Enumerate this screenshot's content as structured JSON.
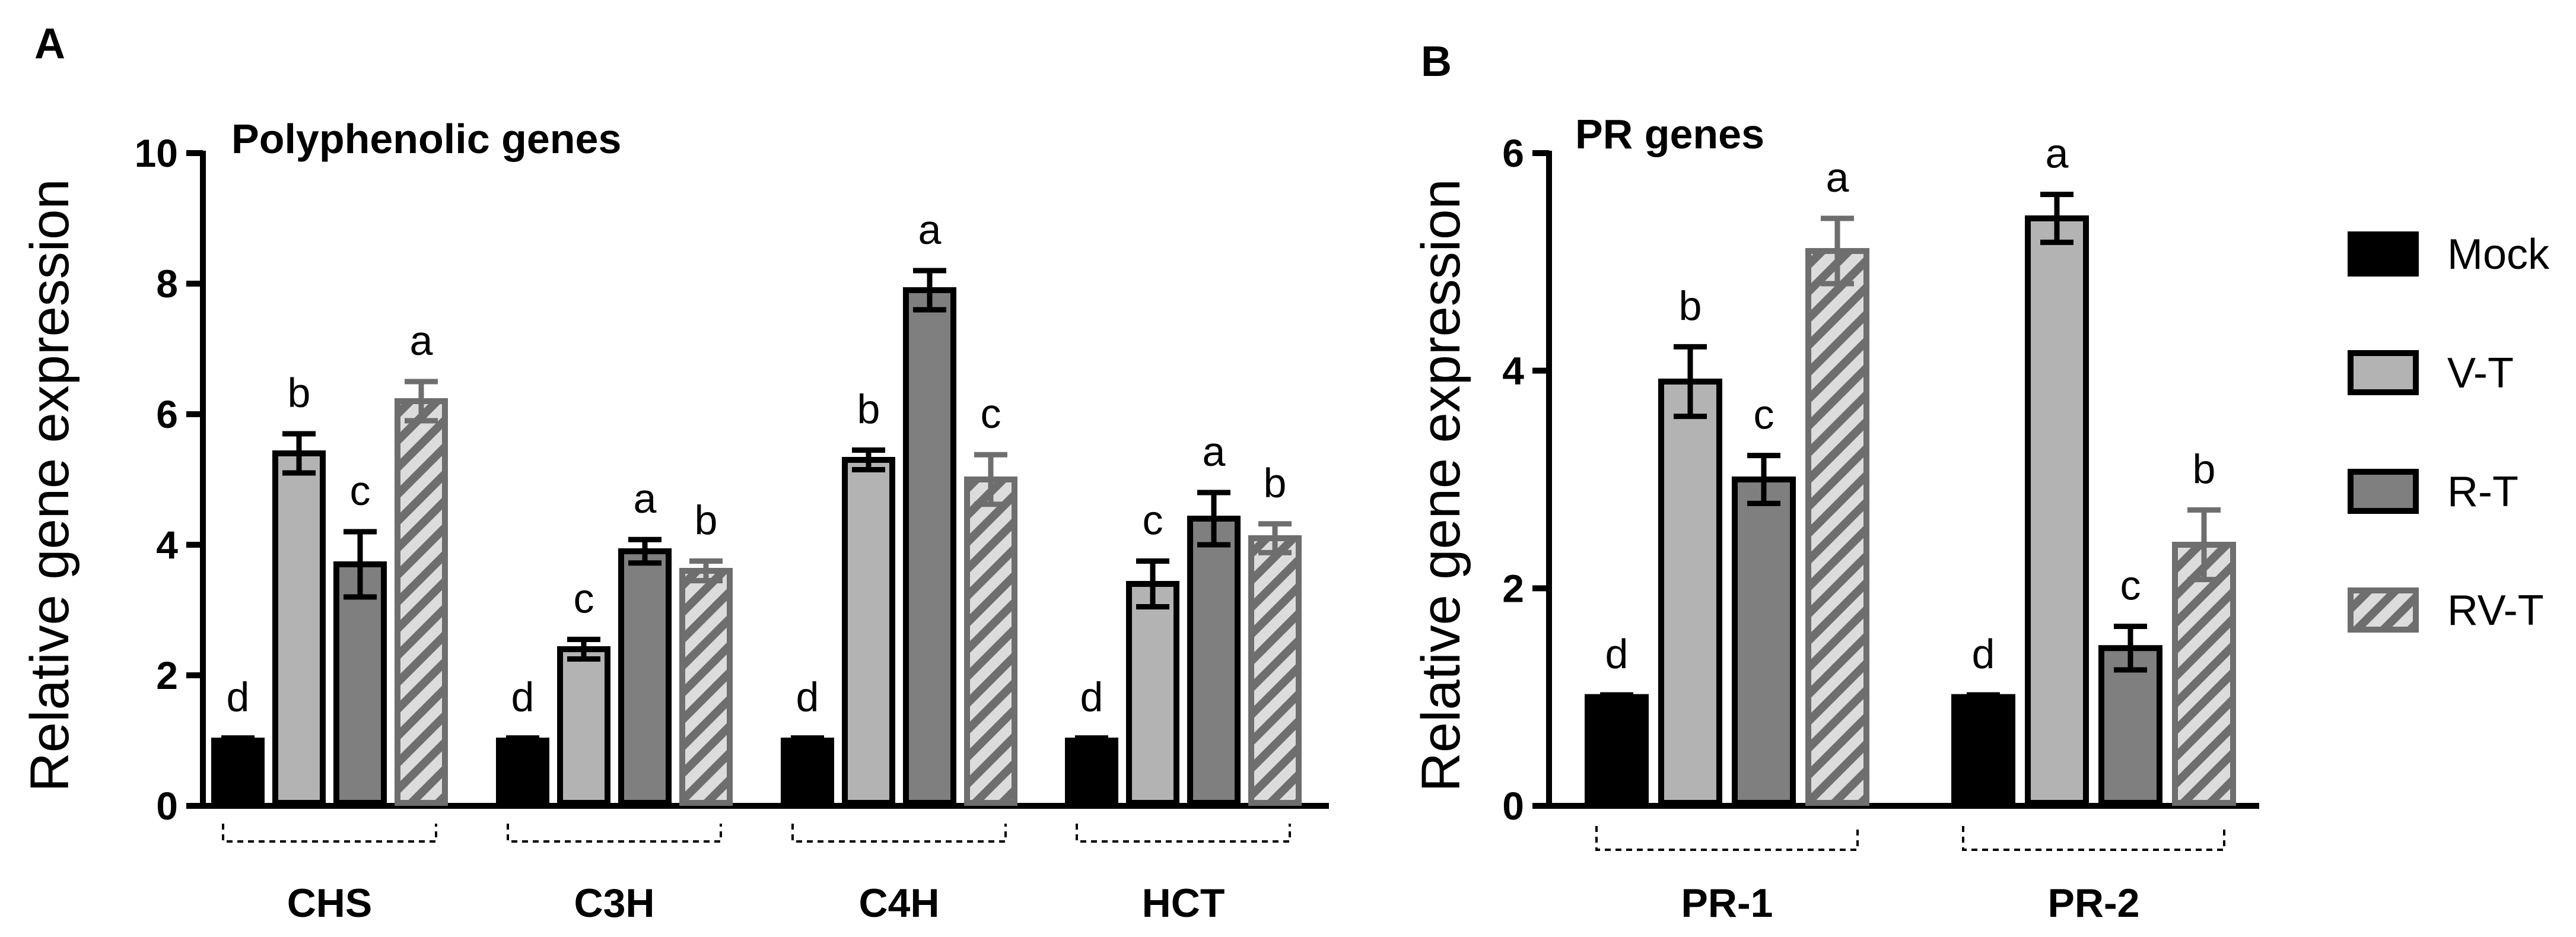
{
  "legend": {
    "entries": [
      {
        "name": "Mock",
        "fill": "#000000",
        "stroke": "#000000",
        "hatch": false
      },
      {
        "name": "V-T",
        "fill": "#b3b3b3",
        "stroke": "#000000",
        "hatch": false
      },
      {
        "name": "R-T",
        "fill": "#7f7f7f",
        "stroke": "#000000",
        "hatch": false
      },
      {
        "name": "RV-T",
        "fill": "#dcdcdc",
        "stroke": "#6e6e6e",
        "hatch": true,
        "hatch_color": "#6e6e6e"
      }
    ]
  },
  "chart_data": [
    {
      "panel": "A",
      "type": "bar",
      "title": "Polyphenolic genes",
      "xlabel": "",
      "ylabel": "Relative gene expression",
      "ylim": [
        0,
        10
      ],
      "yticks": [
        "0",
        "2",
        "4",
        "6",
        "8",
        "10"
      ],
      "categories": [
        "CHS",
        "C3H",
        "C4H",
        "HCT"
      ],
      "series": [
        {
          "name": "Mock",
          "values": [
            1.0,
            1.0,
            1.0,
            1.0
          ],
          "errors": [
            0.04,
            0.04,
            0.04,
            0.04
          ],
          "sig": [
            "d",
            "d",
            "d",
            "d"
          ]
        },
        {
          "name": "V-T",
          "values": [
            5.4,
            2.4,
            5.3,
            3.4
          ],
          "errors": [
            0.3,
            0.15,
            0.15,
            0.35
          ],
          "sig": [
            "b",
            "c",
            "b",
            "c"
          ]
        },
        {
          "name": "R-T",
          "values": [
            3.7,
            3.9,
            7.9,
            4.4
          ],
          "errors": [
            0.5,
            0.18,
            0.3,
            0.4
          ],
          "sig": [
            "c",
            "a",
            "a",
            "a"
          ]
        },
        {
          "name": "RV-T",
          "values": [
            6.2,
            3.6,
            5.0,
            4.1
          ],
          "errors": [
            0.3,
            0.15,
            0.38,
            0.22
          ],
          "sig": [
            "a",
            "b",
            "c",
            "b"
          ]
        }
      ]
    },
    {
      "panel": "B",
      "type": "bar",
      "title": "PR genes",
      "xlabel": "",
      "ylabel": "Relative gene expression",
      "ylim": [
        0,
        6
      ],
      "yticks": [
        "0",
        "2",
        "4",
        "6"
      ],
      "categories": [
        "PR-1",
        "PR-2"
      ],
      "series": [
        {
          "name": "Mock",
          "values": [
            1.0,
            1.0
          ],
          "errors": [
            0.02,
            0.02
          ],
          "sig": [
            "d",
            "d"
          ]
        },
        {
          "name": "V-T",
          "values": [
            3.9,
            5.4
          ],
          "errors": [
            0.32,
            0.22
          ],
          "sig": [
            "b",
            "a"
          ]
        },
        {
          "name": "R-T",
          "values": [
            3.0,
            1.45
          ],
          "errors": [
            0.22,
            0.2
          ],
          "sig": [
            "c",
            "c"
          ]
        },
        {
          "name": "RV-T",
          "values": [
            5.1,
            2.4
          ],
          "errors": [
            0.3,
            0.32
          ],
          "sig": [
            "a",
            "b"
          ]
        }
      ]
    }
  ]
}
